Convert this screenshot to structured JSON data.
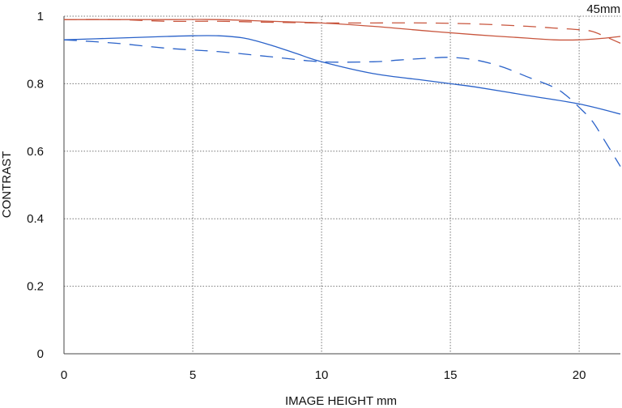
{
  "chart_data": {
    "type": "line",
    "title": "45mm",
    "xlabel": "IMAGE HEIGHT  mm",
    "ylabel": "CONTRAST",
    "xlim": [
      0,
      21.6
    ],
    "ylim": [
      0,
      1
    ],
    "xticks": [
      0,
      5,
      10,
      15,
      20
    ],
    "yticks": [
      0,
      0.2,
      0.4,
      0.6,
      0.8,
      1
    ],
    "ytick_labels": [
      "0",
      "0.2",
      "0.4",
      "0.6",
      "0.8",
      "1"
    ],
    "grid": true,
    "legend": "none",
    "colors": {
      "red": "#c8553d",
      "blue": "#2a62c9",
      "grid": "#777777",
      "axis": "#444444"
    },
    "series": [
      {
        "color": "red",
        "dash": "solid",
        "x": [
          0,
          2,
          4,
          6,
          8,
          10,
          12,
          14,
          16,
          18,
          19,
          20,
          21,
          21.6
        ],
        "y": [
          0.99,
          0.99,
          0.99,
          0.99,
          0.985,
          0.98,
          0.97,
          0.957,
          0.945,
          0.935,
          0.93,
          0.93,
          0.935,
          0.94
        ]
      },
      {
        "color": "red",
        "dash": "dashed",
        "x": [
          0,
          2,
          4,
          6,
          8,
          10,
          12,
          14,
          16,
          18,
          19,
          20,
          20.5,
          21,
          21.6
        ],
        "y": [
          0.99,
          0.99,
          0.985,
          0.985,
          0.982,
          0.98,
          0.98,
          0.98,
          0.977,
          0.97,
          0.965,
          0.96,
          0.955,
          0.94,
          0.92
        ]
      },
      {
        "color": "blue",
        "dash": "solid",
        "x": [
          0,
          2,
          4,
          5,
          6,
          7,
          8,
          9,
          10,
          12,
          14,
          15,
          16,
          18,
          20,
          21.6
        ],
        "y": [
          0.93,
          0.935,
          0.94,
          0.942,
          0.942,
          0.935,
          0.915,
          0.89,
          0.865,
          0.83,
          0.81,
          0.8,
          0.79,
          0.765,
          0.74,
          0.71
        ]
      },
      {
        "color": "blue",
        "dash": "dashed",
        "x": [
          0,
          2,
          4,
          6,
          8,
          10,
          12,
          13,
          14,
          15,
          16,
          17,
          18,
          19,
          19.5,
          20,
          20.5,
          21,
          21.6
        ],
        "y": [
          0.93,
          0.92,
          0.905,
          0.895,
          0.88,
          0.865,
          0.865,
          0.87,
          0.875,
          0.878,
          0.87,
          0.85,
          0.82,
          0.79,
          0.765,
          0.73,
          0.69,
          0.63,
          0.555
        ]
      }
    ]
  }
}
